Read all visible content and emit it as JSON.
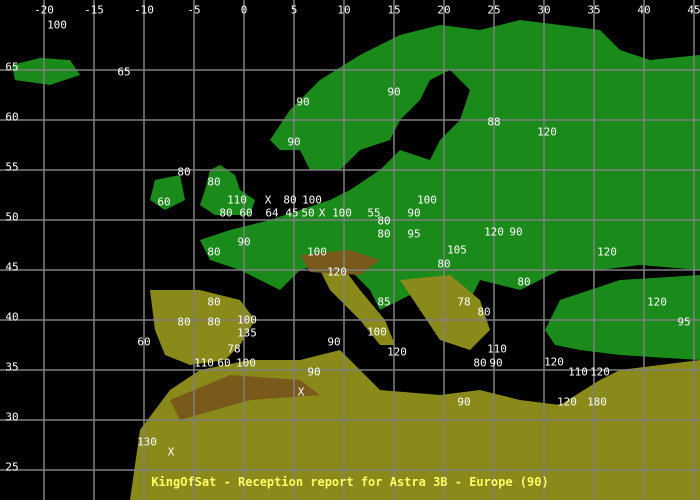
{
  "title": "KingOfSat - Reception report for Astra 3B - Europe (90)",
  "colors": {
    "sea": "#000000",
    "lowland": "#1a8a1a",
    "upland": "#8a8a1a",
    "mountain": "#7a5a1a",
    "grid": "#808080",
    "label": "#ffffff",
    "title": "#ffff66"
  },
  "lon_ticks": [
    "-20",
    "-15",
    "-10",
    "-5",
    "0",
    "5",
    "10",
    "15",
    "20",
    "25",
    "30",
    "35",
    "40",
    "45"
  ],
  "lat_ticks": [
    "65",
    "60",
    "55",
    "50",
    "45",
    "40",
    "35",
    "30",
    "25"
  ],
  "reports": [
    "100",
    "65",
    "90",
    "90",
    "88",
    "120",
    "90",
    "80",
    "80",
    "60",
    "110",
    "X",
    "80",
    "100",
    "80",
    "60",
    "64",
    "45",
    "50",
    "X",
    "100",
    "55",
    "90",
    "100",
    "80",
    "80",
    "95",
    "120",
    "90",
    "90",
    "80",
    "100",
    "105",
    "80",
    "120",
    "120",
    "80",
    "80",
    "85",
    "78",
    "80",
    "120",
    "95",
    "80",
    "80",
    "100",
    "135",
    "100",
    "60",
    "90",
    "78",
    "110",
    "60",
    "100",
    "120",
    "110",
    "80",
    "90",
    "120",
    "110",
    "120",
    "90",
    "X",
    "90",
    "120",
    "180",
    "130",
    "X"
  ]
}
